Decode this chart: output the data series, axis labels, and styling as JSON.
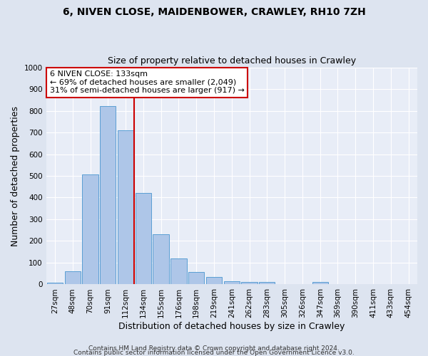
{
  "title1": "6, NIVEN CLOSE, MAIDENBOWER, CRAWLEY, RH10 7ZH",
  "title2": "Size of property relative to detached houses in Crawley",
  "xlabel": "Distribution of detached houses by size in Crawley",
  "ylabel": "Number of detached properties",
  "bar_labels": [
    "27sqm",
    "48sqm",
    "70sqm",
    "91sqm",
    "112sqm",
    "134sqm",
    "155sqm",
    "176sqm",
    "198sqm",
    "219sqm",
    "241sqm",
    "262sqm",
    "283sqm",
    "305sqm",
    "326sqm",
    "347sqm",
    "369sqm",
    "390sqm",
    "411sqm",
    "433sqm",
    "454sqm"
  ],
  "bar_values": [
    8,
    60,
    505,
    820,
    710,
    420,
    230,
    120,
    57,
    35,
    15,
    12,
    10,
    0,
    0,
    10,
    0,
    0,
    0,
    0,
    0
  ],
  "bar_color": "#aec6e8",
  "bar_edge_color": "#5a9fd4",
  "vline_x_index": 5,
  "vline_color": "#cc0000",
  "ylim": [
    0,
    1000
  ],
  "yticks": [
    0,
    100,
    200,
    300,
    400,
    500,
    600,
    700,
    800,
    900,
    1000
  ],
  "annotation_title": "6 NIVEN CLOSE: 133sqm",
  "annotation_line1": "← 69% of detached houses are smaller (2,049)",
  "annotation_line2": "31% of semi-detached houses are larger (917) →",
  "annotation_box_color": "#ffffff",
  "annotation_box_edge": "#cc0000",
  "footer1": "Contains HM Land Registry data © Crown copyright and database right 2024.",
  "footer2": "Contains public sector information licensed under the Open Government Licence v3.0.",
  "bg_color": "#dde4f0",
  "plot_bg_color": "#e8edf7",
  "grid_color": "#ffffff",
  "title1_fontsize": 10,
  "title2_fontsize": 9,
  "ylabel_fontsize": 9,
  "xlabel_fontsize": 9,
  "tick_fontsize": 7.5,
  "annotation_fontsize": 8,
  "footer_fontsize": 6.5
}
